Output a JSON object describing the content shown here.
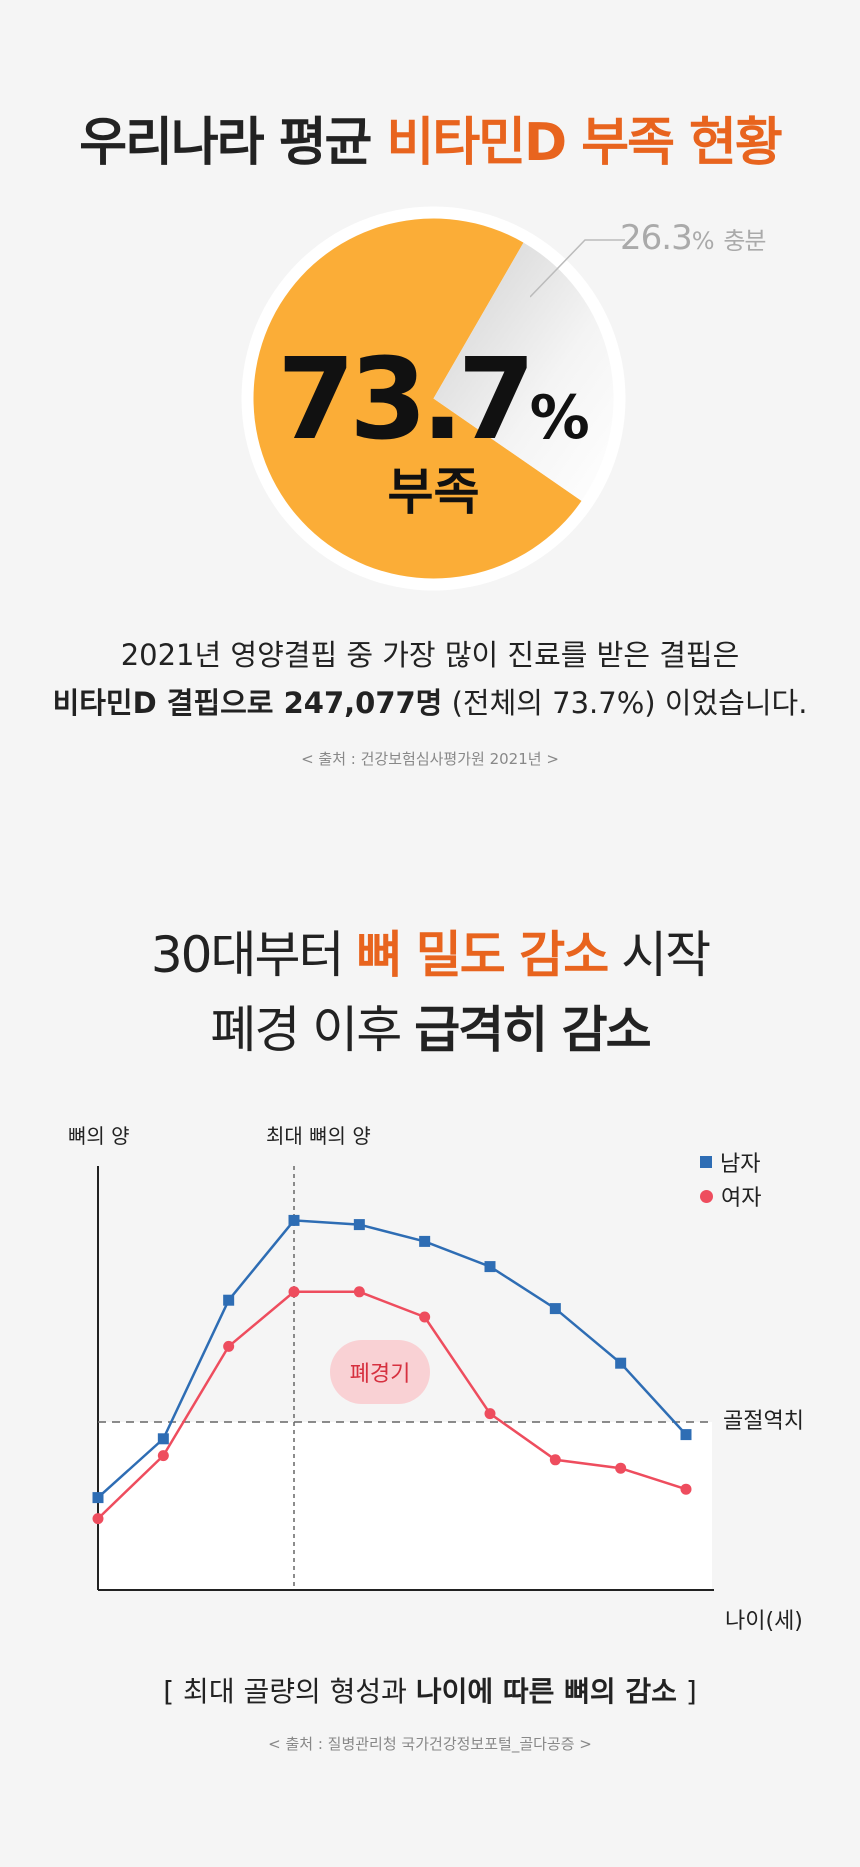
{
  "section1": {
    "title_plain": "우리나라 평균 ",
    "title_highlight": "비타민D 부족 현황",
    "pie": {
      "deficient_value": "73.7",
      "deficient_unit": "%",
      "deficient_label": "부족",
      "sufficient_value": "26.3",
      "sufficient_unit": "%",
      "sufficient_label": "충분",
      "colors": {
        "deficient": "#fbad37",
        "sufficient": "#e6e6e6",
        "ring": "#ffffff"
      }
    },
    "line1": "2021년 영양결핍 중 가장 많이 진료를 받은 결핍은",
    "line2_bold": "비타민D 결핍으로 247,077명",
    "line2_rest": " (전체의 73.7%) 이었습니다.",
    "source": "< 출처 : 건강보험심사평가원 2021년 >"
  },
  "section2": {
    "title_line1_a": "30대부터 ",
    "title_line1_hl": "뼈 밀도 감소",
    "title_line1_b": " 시작",
    "title_line2_a": "폐경 이후 ",
    "title_line2_bold": "급격히 감소",
    "caption_open": "[ 최대 골량의 형성과 ",
    "caption_bold": "나이에 따른 뼈의 감소",
    "caption_close": " ]",
    "source": "< 출처 : 질병관리청 국가건강정보포털_골다공증 >"
  },
  "chart_data": {
    "type": "line",
    "ylabel": "뼈의 양",
    "xlabel": "나이(세)",
    "annotation_peak": "최대 뼈의 양",
    "annotation_threshold": "골절역치",
    "annotation_menopause": "폐경기",
    "x": [
      0,
      10,
      20,
      30,
      40,
      50,
      60,
      70,
      80,
      90
    ],
    "ylim": [
      0,
      100
    ],
    "peak_x": 30,
    "threshold": 40,
    "series": [
      {
        "name": "남자",
        "color": "#2e6db4",
        "marker": "square",
        "values": [
          22,
          36,
          69,
          88,
          87,
          83,
          77,
          67,
          54,
          37
        ]
      },
      {
        "name": "여자",
        "color": "#ee4d5e",
        "marker": "circle",
        "values": [
          17,
          32,
          58,
          71,
          71,
          65,
          42,
          31,
          29,
          24
        ]
      }
    ],
    "legend_position": "top-right"
  }
}
